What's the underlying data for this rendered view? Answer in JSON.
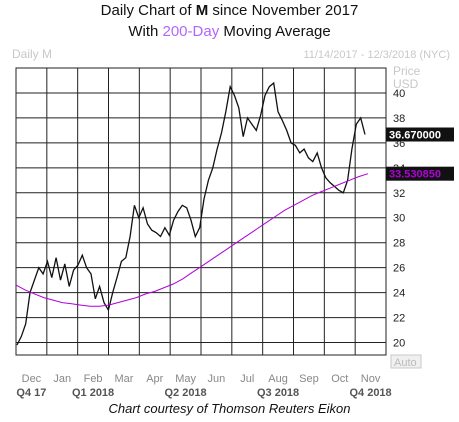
{
  "header": {
    "line1_prefix": "Daily Chart of ",
    "line1_ticker": "M",
    "line1_suffix": " since November 2017",
    "line2_prefix": "With ",
    "line2_highlight": "200-Day",
    "line2_suffix": " Moving Average"
  },
  "credit": "Chart courtesy of Thomson Reuters Eikon",
  "colors": {
    "price": "#111111",
    "moving_average": "#b000d8",
    "grid": "#222222",
    "header_accent": "#b266ff",
    "faint_text": "#c8c8c8",
    "label_box_dark": "#111111"
  },
  "chart_data": {
    "type": "line",
    "chart_label": "Daily M",
    "date_range": "11/14/2017 - 12/3/2018 (NYC)",
    "y_axis_title": [
      "Price",
      "USD"
    ],
    "auto_label": "Auto",
    "last_price_label": "36.670000",
    "ma_label": "33.530850",
    "ylim": [
      19,
      42
    ],
    "y_ticks": [
      20,
      22,
      24,
      26,
      28,
      30,
      32,
      34,
      36,
      38,
      40
    ],
    "month_labels": [
      "Dec",
      "Jan",
      "Feb",
      "Mar",
      "Apr",
      "May",
      "Jun",
      "Jul",
      "Aug",
      "Sep",
      "Oct",
      "Nov"
    ],
    "quarter_labels": [
      "Q4 17",
      "Q1 2018",
      "Q2 2018",
      "Q3 2018",
      "Q4 2018"
    ],
    "grid": true,
    "series": [
      {
        "name": "Price",
        "values": [
          19.8,
          20.5,
          21.5,
          24.0,
          25.0,
          26.0,
          25.5,
          26.5,
          25.2,
          26.8,
          25.0,
          26.3,
          24.5,
          25.8,
          26.2,
          27.0,
          26.0,
          25.5,
          23.5,
          24.5,
          23.2,
          22.6,
          24.0,
          25.2,
          26.5,
          26.8,
          28.5,
          31.0,
          30.0,
          30.8,
          29.5,
          29.0,
          28.8,
          28.5,
          29.2,
          28.6,
          29.8,
          30.5,
          31.0,
          30.8,
          29.8,
          28.5,
          29.2,
          31.5,
          33.0,
          34.0,
          35.5,
          36.8,
          38.5,
          40.5,
          39.8,
          38.8,
          36.5,
          38.0,
          37.5,
          37.0,
          38.2,
          39.8,
          40.5,
          40.8,
          38.5,
          37.8,
          37.0,
          36.0,
          35.8,
          35.2,
          35.5,
          34.8,
          34.5,
          35.2,
          34.0,
          33.2,
          32.8,
          32.5,
          32.2,
          32.0,
          33.0,
          35.5,
          37.5,
          38.0,
          36.67
        ]
      },
      {
        "name": "200-Day Moving Average",
        "values": [
          24.6,
          24.2,
          23.9,
          23.6,
          23.4,
          23.2,
          23.1,
          23.0,
          22.9,
          22.9,
          23.0,
          23.2,
          23.4,
          23.6,
          23.9,
          24.1,
          24.4,
          24.7,
          25.1,
          25.6,
          26.1,
          26.6,
          27.1,
          27.6,
          28.1,
          28.6,
          29.1,
          29.6,
          30.1,
          30.6,
          31.0,
          31.4,
          31.8,
          32.1,
          32.4,
          32.7,
          33.0,
          33.3,
          33.53
        ]
      }
    ]
  }
}
